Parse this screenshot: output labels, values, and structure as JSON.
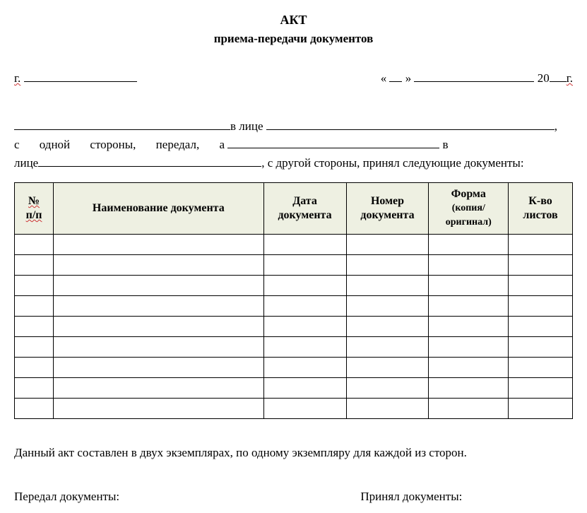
{
  "title": "АКТ",
  "subtitle": "приема-передачи документов",
  "city_prefix": "г.",
  "date_open": "«",
  "date_close": "»",
  "date_year_prefix": "20",
  "date_year_suffix": "г.",
  "body": {
    "in_person": "в лице",
    "line2_start": "с одной стороны, передал, а",
    "line2_end": "в",
    "line3_start": "лице",
    "line3_end": ", с другой стороны, принял следующие документы:"
  },
  "table": {
    "columns": [
      {
        "key": "num",
        "label": "№\nп/п"
      },
      {
        "key": "name",
        "label": "Наименование документа"
      },
      {
        "key": "date",
        "label": "Дата\nдокумента"
      },
      {
        "key": "no",
        "label": "Номер\nдокумента"
      },
      {
        "key": "form",
        "label": "Форма",
        "sublabel": "(копия/\nоригинал)"
      },
      {
        "key": "count",
        "label": "К-во\nлистов"
      }
    ],
    "row_count": 9
  },
  "footer_text": "Данный акт составлен в двух экземплярах, по одному экземпляру для каждой из сторон.",
  "sign_left": "Передал документы:",
  "sign_right": "Принял документы:"
}
